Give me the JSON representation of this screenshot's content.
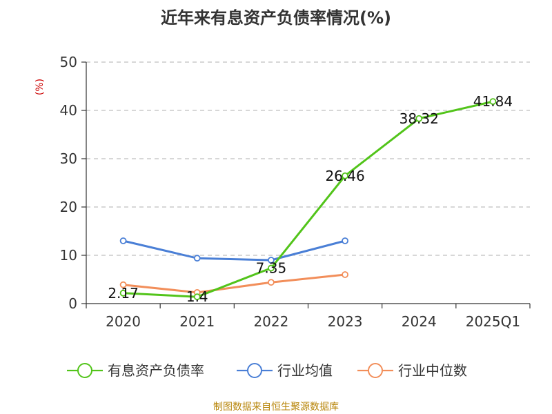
{
  "chart_data": {
    "type": "line",
    "title": "近年来有息资产负债率情况(%)",
    "ylabel": "(%)",
    "xlabel": "",
    "ylim": [
      0,
      50
    ],
    "yticks": [
      0,
      10,
      20,
      30,
      40,
      50
    ],
    "categories": [
      "2020",
      "2021",
      "2022",
      "2023",
      "2024",
      "2025Q1"
    ],
    "grid": true,
    "legend_position": "bottom",
    "series": [
      {
        "name": "有息资产负债率",
        "color": "#52c41a",
        "values": [
          2.17,
          1.4,
          7.35,
          26.46,
          38.32,
          41.84
        ],
        "labels": [
          "2.17",
          "1.4",
          "7.35",
          "26.46",
          "38.32",
          "41.84"
        ]
      },
      {
        "name": "行业均值",
        "color": "#4a7fd6",
        "values": [
          13.0,
          9.4,
          9.0,
          13.0,
          null,
          null
        ]
      },
      {
        "name": "行业中位数",
        "color": "#f28e5a",
        "values": [
          3.9,
          2.3,
          4.4,
          6.0,
          null,
          null
        ]
      }
    ]
  },
  "source": "制图数据来自恒生聚源数据库"
}
